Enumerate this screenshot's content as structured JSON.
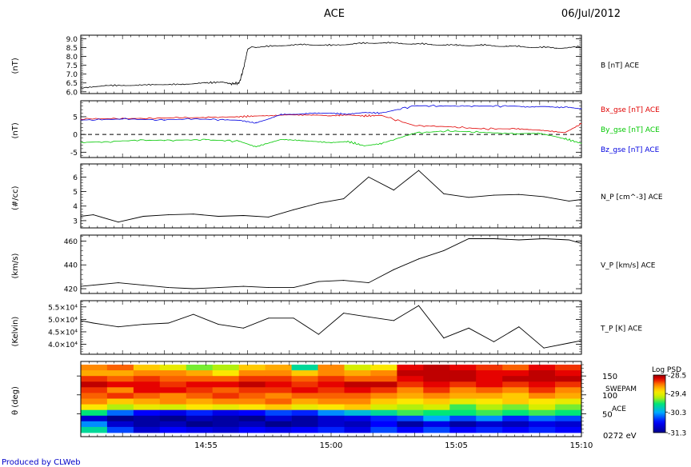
{
  "header": {
    "title": "ACE",
    "date": "06/Jul/2012"
  },
  "footer": {
    "credit": "Produced by CLWeb"
  },
  "colors": {
    "bx": "#e00000",
    "by": "#00c800",
    "bz": "#0000e0",
    "line": "#000000"
  },
  "chart_data": [
    {
      "type": "line",
      "panel": "B",
      "ylabel": "(nT)",
      "series": [
        {
          "name": "B [nT] ACE",
          "color": "#000000"
        }
      ],
      "ylim": [
        5.9,
        9.2
      ],
      "yticks": [
        "9.0",
        "8.5",
        "8.0",
        "7.5",
        "7.0",
        "6.5",
        "6.0"
      ],
      "ytick_values": [
        9.0,
        8.5,
        8.0,
        7.5,
        7.0,
        6.5,
        6.0
      ],
      "x": [
        0,
        3,
        6,
        9,
        12,
        15,
        17,
        18,
        19,
        19.5,
        20,
        20.5,
        21,
        24,
        27,
        30,
        33,
        36,
        39,
        42,
        45,
        48,
        51,
        54,
        57,
        60
      ],
      "y": [
        6.2,
        6.35,
        6.35,
        6.4,
        6.4,
        6.5,
        6.55,
        6.45,
        6.5,
        7.3,
        8.4,
        8.55,
        8.5,
        8.6,
        8.65,
        8.6,
        8.7,
        8.75,
        8.7,
        8.65,
        8.6,
        8.6,
        8.55,
        8.5,
        8.45,
        8.5
      ]
    },
    {
      "type": "line",
      "panel": "Bgse",
      "ylabel": "(nT)",
      "ylim": [
        -6.5,
        9.5
      ],
      "yticks": [
        "5",
        "0",
        "-5"
      ],
      "ytick_values": [
        5,
        0,
        -5
      ],
      "dashed_zero": true,
      "series": [
        {
          "name": "Bx_gse [nT] ACE",
          "color": "#e00000",
          "x": [
            0,
            5,
            10,
            15,
            19,
            21,
            24,
            27,
            30,
            32,
            34,
            36,
            40,
            44,
            48,
            52,
            55,
            58,
            60
          ],
          "y": [
            4.3,
            4.5,
            4.6,
            4.8,
            5.0,
            5.2,
            5.5,
            5.6,
            5.3,
            5.5,
            5.2,
            5.4,
            2.5,
            2.2,
            1.6,
            1.6,
            1.2,
            0.5,
            3.0
          ]
        },
        {
          "name": "By_gse [nT] ACE",
          "color": "#00c800",
          "x": [
            0,
            5,
            10,
            15,
            19,
            21,
            24,
            27,
            30,
            32,
            34,
            36,
            40,
            44,
            48,
            52,
            55,
            58,
            60
          ],
          "y": [
            -2.3,
            -1.8,
            -1.6,
            -1.5,
            -1.9,
            -3.5,
            -1.4,
            -1.8,
            -2.3,
            -2.0,
            -3.2,
            -2.6,
            0.4,
            1.0,
            0.6,
            0.2,
            0.4,
            -1.2,
            -2.5
          ]
        },
        {
          "name": "Bz_gse [nT] ACE",
          "color": "#0000e0",
          "x": [
            0,
            5,
            10,
            15,
            19,
            21,
            24,
            27,
            30,
            32,
            34,
            36,
            40,
            44,
            48,
            52,
            55,
            58,
            60
          ],
          "y": [
            4.1,
            4.3,
            4.2,
            4.3,
            4.0,
            3.2,
            5.5,
            5.8,
            6.0,
            5.7,
            6.2,
            6.0,
            8.1,
            8.0,
            8.0,
            8.0,
            7.9,
            7.8,
            7.2
          ]
        }
      ]
    },
    {
      "type": "line",
      "panel": "N_P",
      "ylabel": "(#/cc)",
      "series": [
        {
          "name": "N_P [cm^-3] ACE",
          "color": "#000000"
        }
      ],
      "ylim": [
        2.5,
        6.9
      ],
      "yticks": [
        "6",
        "5",
        "4",
        "3"
      ],
      "ytick_values": [
        6,
        5,
        4,
        3
      ],
      "x": [
        0,
        1.5,
        4.5,
        7.5,
        10.5,
        13.5,
        16.5,
        19.5,
        22.5,
        25.5,
        28.5,
        31.5,
        34.5,
        37.5,
        40.5,
        43.5,
        46.5,
        49.5,
        52.5,
        55.5,
        58.5,
        60
      ],
      "y": [
        3.3,
        3.4,
        2.9,
        3.3,
        3.4,
        3.45,
        3.3,
        3.35,
        3.25,
        3.75,
        4.2,
        4.5,
        6.0,
        5.1,
        6.45,
        4.85,
        4.6,
        4.75,
        4.8,
        4.65,
        4.35,
        4.45
      ]
    },
    {
      "type": "line",
      "panel": "V_P",
      "ylabel": "(km/s)",
      "series": [
        {
          "name": "V_P [km/s] ACE",
          "color": "#000000"
        }
      ],
      "ylim": [
        416,
        465
      ],
      "yticks": [
        "460",
        "440",
        "420"
      ],
      "ytick_values": [
        460,
        440,
        420
      ],
      "x": [
        0,
        1.5,
        4.5,
        7.5,
        10.5,
        13.5,
        16.5,
        19.5,
        22.5,
        25.5,
        28.5,
        31.5,
        34.5,
        37.5,
        40.5,
        43.5,
        46.5,
        49.5,
        52.5,
        55.5,
        58.5,
        60
      ],
      "y": [
        422,
        423,
        425,
        423,
        421,
        420,
        421,
        422,
        421,
        421,
        426,
        427,
        425,
        436,
        445,
        452,
        462,
        462,
        461,
        462,
        461,
        458
      ]
    },
    {
      "type": "line",
      "panel": "T_P",
      "ylabel": "(Kelvin)",
      "series": [
        {
          "name": "T_P [K] ACE",
          "color": "#000000"
        }
      ],
      "ylim": [
        36000,
        57500
      ],
      "yticks": [
        "5.5×10⁴",
        "5.0×10⁴",
        "4.5×10⁴",
        "4.0×10⁴"
      ],
      "ytick_values": [
        55000,
        50000,
        45000,
        40000
      ],
      "x": [
        0,
        1.5,
        4.5,
        7.5,
        10.5,
        13.5,
        16.5,
        19.5,
        22.5,
        25.5,
        28.5,
        31.5,
        34.5,
        37.5,
        40.5,
        43.5,
        46.5,
        49.5,
        52.5,
        55.5,
        58.5,
        60
      ],
      "y": [
        49500,
        48500,
        47000,
        48000,
        48500,
        52000,
        48000,
        46500,
        50500,
        50500,
        44000,
        52500,
        51000,
        49500,
        55500,
        42500,
        46500,
        41000,
        47000,
        38500,
        40500,
        41500
      ]
    },
    {
      "type": "heatmap",
      "panel": "SWEPAM",
      "ylabel": "θ (deg)",
      "yticks": [
        "150",
        "100",
        "50"
      ],
      "ytick_values": [
        150,
        100,
        50
      ],
      "right_labels": [
        "SWEPAM",
        "ACE",
        "0272 eV"
      ],
      "xticks": [
        "14:55",
        "15:00",
        "15:05",
        "15:10"
      ],
      "xtick_values": [
        15,
        30,
        45,
        60
      ],
      "colorbar": {
        "title": "Log PSD",
        "ticks": [
          "-28.5",
          "-29.4",
          "-30.3",
          "-31.3"
        ],
        "tick_values": [
          -28.5,
          -29.4,
          -30.3,
          -31.3
        ],
        "range": [
          -31.3,
          -28.5
        ]
      },
      "n_time_bins": 19,
      "n_angle_bins": 12,
      "values": [
        [
          -29.0,
          -28.9,
          -29.2,
          -29.4,
          -29.7,
          -29.6,
          -29.2,
          -29.1,
          -30.0,
          -29.0,
          -29.5,
          -29.3,
          -28.7,
          -28.6,
          -28.7,
          -28.8,
          -28.9,
          -28.7,
          -28.8
        ],
        [
          -29.1,
          -29.1,
          -29.0,
          -29.0,
          -29.1,
          -29.3,
          -29.0,
          -29.0,
          -29.2,
          -29.0,
          -29.1,
          -29.0,
          -28.6,
          -28.6,
          -28.6,
          -28.7,
          -28.7,
          -28.6,
          -28.7
        ],
        [
          -28.8,
          -28.9,
          -28.8,
          -28.9,
          -28.9,
          -28.9,
          -28.8,
          -28.8,
          -28.9,
          -28.8,
          -28.9,
          -28.9,
          -28.7,
          -28.6,
          -28.6,
          -28.7,
          -28.6,
          -28.6,
          -28.6
        ],
        [
          -28.6,
          -28.7,
          -28.7,
          -28.8,
          -28.7,
          -28.7,
          -28.6,
          -28.7,
          -28.8,
          -28.7,
          -28.6,
          -28.6,
          -28.8,
          -28.7,
          -28.8,
          -28.7,
          -28.8,
          -28.7,
          -28.8
        ],
        [
          -28.8,
          -29.0,
          -28.7,
          -28.7,
          -28.8,
          -28.9,
          -28.8,
          -28.8,
          -28.7,
          -28.8,
          -28.7,
          -28.8,
          -29.0,
          -28.8,
          -29.0,
          -28.9,
          -29.0,
          -28.8,
          -29.0
        ],
        [
          -28.9,
          -28.8,
          -28.9,
          -29.0,
          -28.9,
          -28.8,
          -28.9,
          -29.0,
          -28.9,
          -28.9,
          -28.9,
          -29.0,
          -29.1,
          -29.0,
          -29.1,
          -29.1,
          -29.2,
          -29.0,
          -29.1
        ],
        [
          -29.0,
          -29.2,
          -29.1,
          -29.0,
          -29.1,
          -29.0,
          -29.0,
          -28.9,
          -29.1,
          -29.0,
          -29.0,
          -29.2,
          -29.3,
          -29.2,
          -29.4,
          -29.3,
          -29.2,
          -29.3,
          -29.4
        ],
        [
          -29.3,
          -29.6,
          -29.4,
          -29.5,
          -29.3,
          -29.4,
          -29.3,
          -29.2,
          -29.4,
          -29.3,
          -29.2,
          -29.5,
          -29.6,
          -29.5,
          -29.8,
          -29.6,
          -29.7,
          -29.5,
          -29.7
        ],
        [
          -29.9,
          -30.5,
          -30.8,
          -30.9,
          -30.7,
          -30.9,
          -30.8,
          -30.6,
          -30.7,
          -30.4,
          -30.2,
          -30.0,
          -29.8,
          -29.9,
          -29.9,
          -29.8,
          -29.9,
          -29.8,
          -29.9
        ],
        [
          -31.0,
          -31.3,
          -31.2,
          -31.3,
          -31.1,
          -31.2,
          -31.3,
          -31.0,
          -31.2,
          -31.0,
          -30.9,
          -30.7,
          -30.6,
          -30.3,
          -30.6,
          -30.4,
          -30.7,
          -30.5,
          -30.6
        ],
        [
          -30.4,
          -31.0,
          -31.2,
          -31.1,
          -31.3,
          -31.2,
          -31.1,
          -31.3,
          -31.2,
          -31.0,
          -31.1,
          -30.8,
          -31.2,
          -30.9,
          -31.2,
          -31.0,
          -31.1,
          -30.9,
          -31.0
        ],
        [
          -30.0,
          -30.6,
          -31.0,
          -30.8,
          -30.9,
          -31.0,
          -30.8,
          -30.9,
          -30.8,
          -30.7,
          -30.9,
          -30.6,
          -30.8,
          -30.6,
          -30.8,
          -30.7,
          -30.8,
          -30.7,
          -30.8
        ]
      ]
    }
  ]
}
